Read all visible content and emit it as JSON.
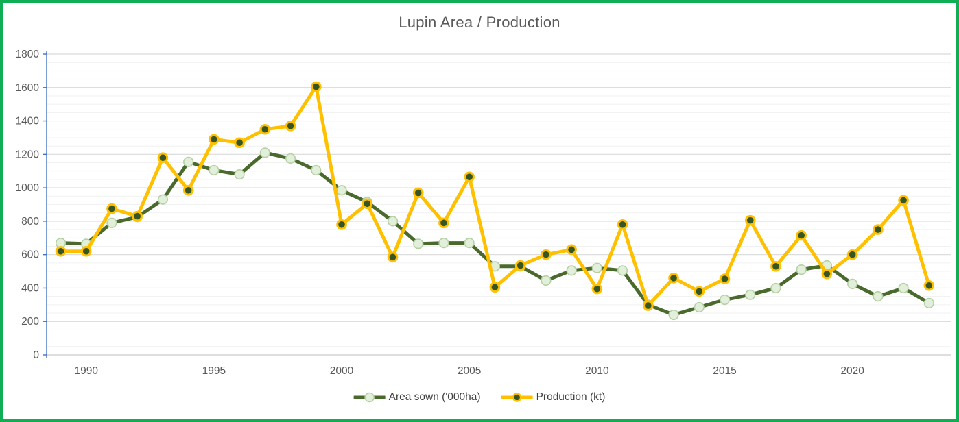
{
  "frame": {
    "border_color": "#0fae54",
    "background": "#ffffff"
  },
  "chart_data": {
    "type": "line",
    "title": "Lupin Area / Production",
    "x": [
      1989,
      1990,
      1991,
      1992,
      1993,
      1994,
      1995,
      1996,
      1997,
      1998,
      1999,
      2000,
      2001,
      2002,
      2003,
      2004,
      2005,
      2006,
      2007,
      2008,
      2009,
      2010,
      2011,
      2012,
      2013,
      2014,
      2015,
      2016,
      2017,
      2018,
      2019,
      2020,
      2021,
      2022,
      2023
    ],
    "series": [
      {
        "name": "Area sown ('000ha)",
        "values": [
          670,
          665,
          790,
          825,
          930,
          1155,
          1105,
          1080,
          1210,
          1175,
          1105,
          985,
          915,
          800,
          665,
          670,
          670,
          530,
          530,
          445,
          505,
          520,
          505,
          300,
          240,
          285,
          330,
          360,
          400,
          510,
          535,
          425,
          350,
          400,
          310
        ],
        "line_color": "#4a6a2d",
        "marker_fill": "#e2efda",
        "marker_stroke": "#b5d1a4"
      },
      {
        "name": "Production (kt)",
        "values": [
          620,
          620,
          875,
          830,
          1180,
          985,
          1290,
          1270,
          1350,
          1370,
          1605,
          780,
          905,
          585,
          970,
          790,
          1065,
          405,
          535,
          600,
          630,
          395,
          780,
          295,
          460,
          380,
          455,
          805,
          530,
          715,
          485,
          600,
          750,
          925,
          415
        ],
        "line_color": "#ffc000",
        "marker_fill": "#375623",
        "marker_stroke": "#ffc000"
      }
    ],
    "xlabel": "",
    "ylabel": "",
    "ylim": [
      0,
      1800
    ],
    "y_major_step": 200,
    "y_minor_step": 50,
    "y_tick_labels": [
      "0",
      "200",
      "400",
      "600",
      "800",
      "1000",
      "1200",
      "1400",
      "1600",
      "1800"
    ],
    "x_tick_labels": [
      "1990",
      "1995",
      "2000",
      "2005",
      "2010",
      "2015",
      "2020"
    ],
    "grid": "horizontal major+minor",
    "legend_position": "bottom",
    "axis_color": "#4472c4",
    "x_axis_line_color": "#c9c9c9",
    "gridline_major_color": "#d9d9d9",
    "gridline_minor_color": "#f1f1f1",
    "tick_label_color": "#595959",
    "legend_text_color": "#404040"
  }
}
